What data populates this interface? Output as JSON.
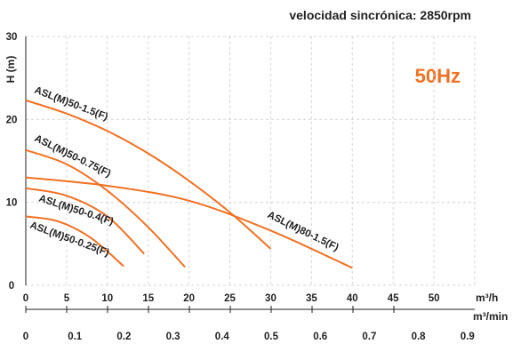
{
  "chart_data": {
    "type": "line",
    "subtitle": "velocidad sincrónica: 2850rpm",
    "frequency_badge": "50Hz",
    "ylabel": "H (m)",
    "xlabel": "m³/h",
    "x2label": "m³/min",
    "xlim": [
      0,
      55
    ],
    "ylim": [
      0,
      30
    ],
    "x_ticks": [
      0,
      5,
      10,
      15,
      20,
      25,
      30,
      35,
      40,
      45,
      50
    ],
    "y_ticks": [
      0,
      10,
      20,
      30
    ],
    "x2_ticks": [
      "0",
      "0.1",
      "0.2",
      "0.3",
      "0.4",
      "0.5",
      "0.6",
      "0.7",
      "0.8",
      "0.9"
    ],
    "grid": true,
    "series": [
      {
        "name": "ASL(M)50-1.5(F)",
        "x": [
          0,
          5,
          10,
          15,
          20,
          25,
          30
        ],
        "y": [
          22.3,
          20.7,
          18.6,
          15.9,
          12.6,
          8.8,
          4.4
        ]
      },
      {
        "name": "ASL(M)50-0.75(F)",
        "x": [
          0,
          5,
          10,
          15,
          19.5
        ],
        "y": [
          16.3,
          14.6,
          11.4,
          7.0,
          2.2
        ]
      },
      {
        "name": "ASL(M)50-0.4(F)",
        "x": [
          0,
          5,
          10,
          14.5
        ],
        "y": [
          11.7,
          10.8,
          8.3,
          3.8
        ]
      },
      {
        "name": "ASL(M)50-0.25(F)",
        "x": [
          0,
          4,
          8,
          12
        ],
        "y": [
          8.3,
          7.7,
          5.7,
          2.3
        ]
      },
      {
        "name": "ASL(M)80-1.5(F)",
        "x": [
          0,
          10,
          20,
          30,
          40
        ],
        "y": [
          13.0,
          12.0,
          10.2,
          6.6,
          2.1
        ]
      }
    ],
    "colors": {
      "curve": "#f07022",
      "badge": "#f07022",
      "text": "#222222",
      "grid": "#d4d4d4"
    }
  }
}
